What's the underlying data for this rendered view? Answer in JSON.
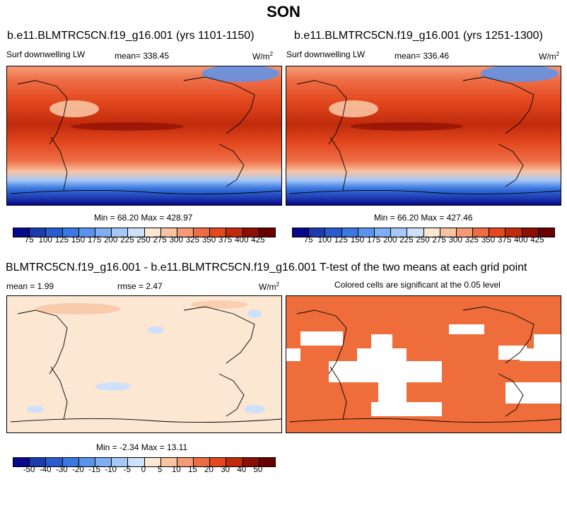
{
  "season": "SON",
  "panels": {
    "p1": {
      "title": "b.e11.BLMTRC5CN.f19_g16.001 (yrs 1101-1150)",
      "var": "Surf downwelling LW",
      "mean": "mean= 338.45",
      "units": "W/m",
      "units_sup": "2",
      "minmax": "Min =  68.20 Max = 428.97"
    },
    "p2": {
      "title": "b.e11.BLMTRC5CN.f19_g16.001 (yrs 1251-1300)",
      "var": "Surf downwelling LW",
      "mean": "mean= 336.46",
      "units": "W/m",
      "units_sup": "2",
      "minmax": "Min =  66.20 Max = 427.46"
    },
    "p3": {
      "title": "BLMTRC5CN.f19_g16.001 - b.e11.BLMTRC5CN.f19_g16.001",
      "mean": "mean =   1.99",
      "rmse": "rmse =   2.47",
      "units": "W/m",
      "units_sup": "2",
      "minmax": "Min =  -2.34 Max =  13.11"
    },
    "p4": {
      "title": "T-test of the two means at each grid point",
      "subtitle": "Colored cells are significant at the 0.05 level"
    }
  },
  "colorbar_abs": {
    "labels": [
      "75",
      "100",
      "125",
      "150",
      "175",
      "200",
      "225",
      "250",
      "275",
      "300",
      "325",
      "350",
      "375",
      "400",
      "425"
    ],
    "colors": [
      "#08088a",
      "#1c3bb0",
      "#2a5ccd",
      "#3b78e0",
      "#5b93ec",
      "#80aef3",
      "#a6c8f7",
      "#cfe1fa",
      "#fbe7d2",
      "#f9c3a2",
      "#f59a75",
      "#ee6d46",
      "#e3481e",
      "#c02b0c",
      "#8c0e04",
      "#680000"
    ]
  },
  "colorbar_diff": {
    "labels": [
      "-50",
      "-40",
      "-30",
      "-20",
      "-15",
      "-10",
      "-5",
      "0",
      "5",
      "10",
      "15",
      "20",
      "30",
      "40",
      "50"
    ],
    "colors": [
      "#08088a",
      "#1c3bb0",
      "#2a5ccd",
      "#3b78e0",
      "#5b93ec",
      "#80aef3",
      "#a6c8f7",
      "#cfe1fa",
      "#fbe7d2",
      "#f9c3a2",
      "#f59a75",
      "#ee6d46",
      "#e3481e",
      "#c02b0c",
      "#8c0e04",
      "#680000"
    ]
  },
  "ttest_color": "#ee6d3a"
}
